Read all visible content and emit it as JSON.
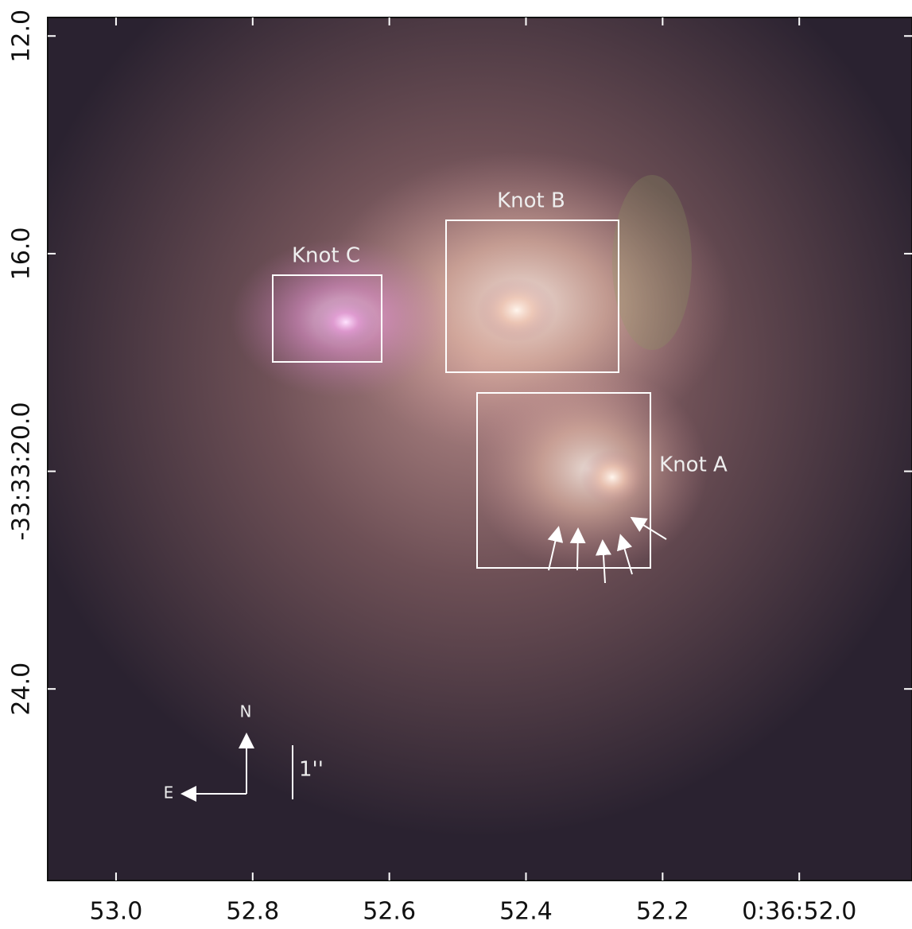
{
  "chart_data": {
    "type": "image",
    "xlim": [
      53.1,
      51.835
    ],
    "ylim": [
      11.66,
      27.52
    ],
    "xticks": [
      {
        "value": 53.0,
        "label": "53.0"
      },
      {
        "value": 52.8,
        "label": "52.8"
      },
      {
        "value": 52.6,
        "label": "52.6"
      },
      {
        "value": 52.4,
        "label": "52.4"
      },
      {
        "value": 52.2,
        "label": "52.2"
      },
      {
        "value": 52.0,
        "label": "0:36:52.0"
      }
    ],
    "yticks": [
      {
        "value": 12,
        "label": "12.0"
      },
      {
        "value": 16,
        "label": "16.0"
      },
      {
        "value": 20,
        "label": "-33:33:20.0"
      },
      {
        "value": 24,
        "label": "24.0"
      }
    ],
    "annotations": {
      "knot_a": "Knot A",
      "knot_b": "Knot B",
      "knot_c": "Knot C",
      "north": "N",
      "east": "E",
      "scale": "1''"
    }
  }
}
